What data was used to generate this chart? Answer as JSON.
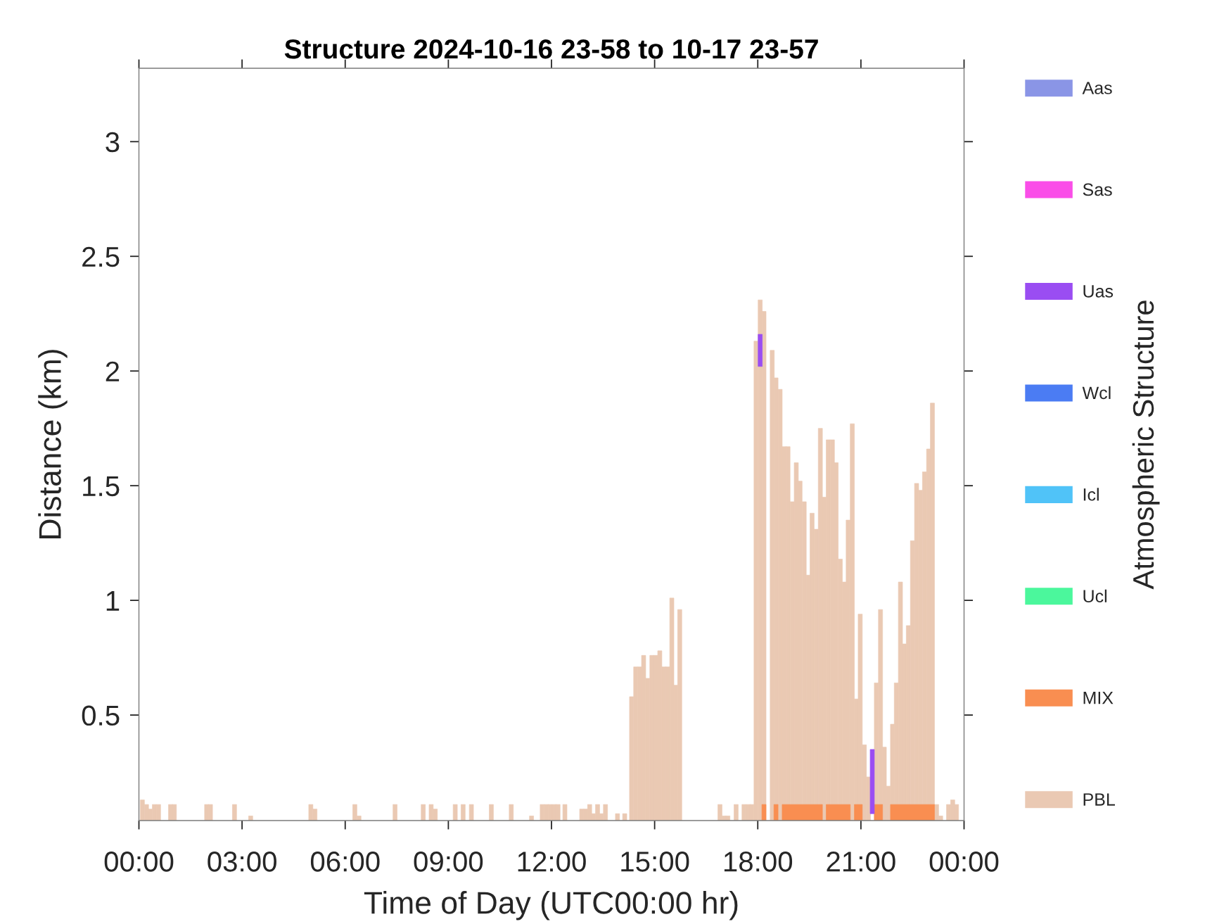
{
  "chart_data": {
    "type": "bar",
    "title": "Structure 2024-10-16 23-58 to 10-17 23-57",
    "xlabel": "Time of Day (UTC00:00 hr)",
    "ylabel": "Distance (km)",
    "xlim": [
      0,
      24
    ],
    "ylim": [
      0.04,
      3.32
    ],
    "xticks": [
      {
        "value": 0,
        "label": "00:00"
      },
      {
        "value": 3,
        "label": "03:00"
      },
      {
        "value": 6,
        "label": "06:00"
      },
      {
        "value": 9,
        "label": "09:00"
      },
      {
        "value": 12,
        "label": "12:00"
      },
      {
        "value": 15,
        "label": "15:00"
      },
      {
        "value": 18,
        "label": "18:00"
      },
      {
        "value": 21,
        "label": "21:00"
      },
      {
        "value": 24,
        "label": "00:00"
      }
    ],
    "yticks": [
      0.5,
      1,
      1.5,
      2,
      2.5,
      3
    ],
    "legend": "right",
    "legend_title": "Atmospheric Structure",
    "series": [
      {
        "name": "PBL",
        "color": "#eac9b3",
        "x": [
          0.1,
          0.22,
          0.33,
          0.45,
          0.57,
          0.92,
          1.03,
          1.97,
          2.08,
          2.78,
          3.25,
          5.0,
          5.12,
          6.28,
          6.4,
          7.45,
          8.27,
          8.5,
          8.62,
          9.2,
          9.43,
          9.67,
          10.25,
          10.83,
          11.42,
          11.73,
          11.85,
          11.96,
          12.08,
          12.19,
          12.39,
          12.88,
          13.0,
          13.11,
          13.22,
          13.34,
          13.45,
          13.57,
          13.92,
          14.13,
          14.33,
          14.45,
          14.57,
          14.68,
          14.8,
          14.92,
          15.03,
          15.15,
          15.27,
          15.38,
          15.5,
          15.62,
          15.73,
          16.9,
          17.02,
          17.13,
          17.37,
          17.6,
          17.72,
          17.83,
          17.95,
          18.07,
          18.18,
          18.42,
          18.53,
          18.65,
          18.77,
          18.88,
          19.0,
          19.12,
          19.23,
          19.35,
          19.47,
          19.58,
          19.7,
          19.82,
          19.93,
          20.05,
          20.17,
          20.28,
          20.4,
          20.52,
          20.63,
          20.75,
          20.87,
          20.98,
          21.1,
          21.22,
          21.45,
          21.57,
          21.68,
          21.8,
          21.92,
          22.03,
          22.15,
          22.27,
          22.38,
          22.5,
          22.62,
          22.73,
          22.85,
          22.97,
          23.08,
          23.2,
          23.32,
          23.55,
          23.67,
          23.78
        ],
        "values": [
          0.13,
          0.11,
          0.09,
          0.11,
          0.11,
          0.11,
          0.11,
          0.11,
          0.11,
          0.11,
          0.06,
          0.11,
          0.09,
          0.11,
          0.06,
          0.11,
          0.11,
          0.11,
          0.09,
          0.11,
          0.11,
          0.11,
          0.11,
          0.11,
          0.06,
          0.11,
          0.11,
          0.11,
          0.11,
          0.11,
          0.11,
          0.09,
          0.09,
          0.11,
          0.07,
          0.11,
          0.07,
          0.11,
          0.07,
          0.07,
          0.58,
          0.71,
          0.71,
          0.76,
          0.66,
          0.76,
          0.76,
          0.78,
          0.71,
          0.71,
          1.01,
          0.63,
          0.96,
          0.11,
          0.06,
          0.06,
          0.11,
          0.11,
          0.11,
          0.11,
          2.13,
          2.31,
          2.26,
          2.09,
          1.97,
          1.92,
          1.67,
          1.67,
          1.43,
          1.6,
          1.52,
          1.43,
          1.11,
          1.38,
          1.31,
          1.75,
          1.45,
          1.7,
          1.7,
          1.6,
          1.18,
          1.08,
          1.35,
          1.77,
          0.57,
          0.94,
          0.37,
          0.23,
          0.64,
          0.96,
          0.36,
          0.19,
          0.46,
          0.64,
          1.08,
          0.81,
          0.89,
          1.26,
          1.51,
          1.48,
          1.56,
          1.66,
          1.86,
          0.11,
          0.06,
          0.11,
          0.13,
          0.11
        ]
      },
      {
        "name": "MIX",
        "color": "#f98e51",
        "type": "histogram",
        "bins": [
          18.12,
          18.24,
          18.47,
          18.59,
          18.71,
          19.88,
          19.99,
          20.69,
          20.81,
          21.04,
          21.39,
          21.63,
          21.86,
          23.14
        ],
        "values": [
          0.11,
          null,
          0.11,
          null,
          0.11,
          null,
          0.11,
          null,
          0.11,
          null,
          0.11,
          null,
          0.11
        ]
      },
      {
        "name": "Ucl",
        "color": "#4bf79c"
      },
      {
        "name": "Icl",
        "color": "#50c3f8"
      },
      {
        "name": "Wcl",
        "color": "#4b7cf3"
      },
      {
        "name": "Uas",
        "color": "#9a4df2",
        "x": [
          18.07,
          21.33
        ],
        "base": [
          2.02,
          0.07
        ],
        "values": [
          0.14,
          0.28
        ]
      },
      {
        "name": "Sas",
        "color": "#fa4ee8"
      },
      {
        "name": "Aas",
        "color": "#8a95e6"
      }
    ]
  }
}
